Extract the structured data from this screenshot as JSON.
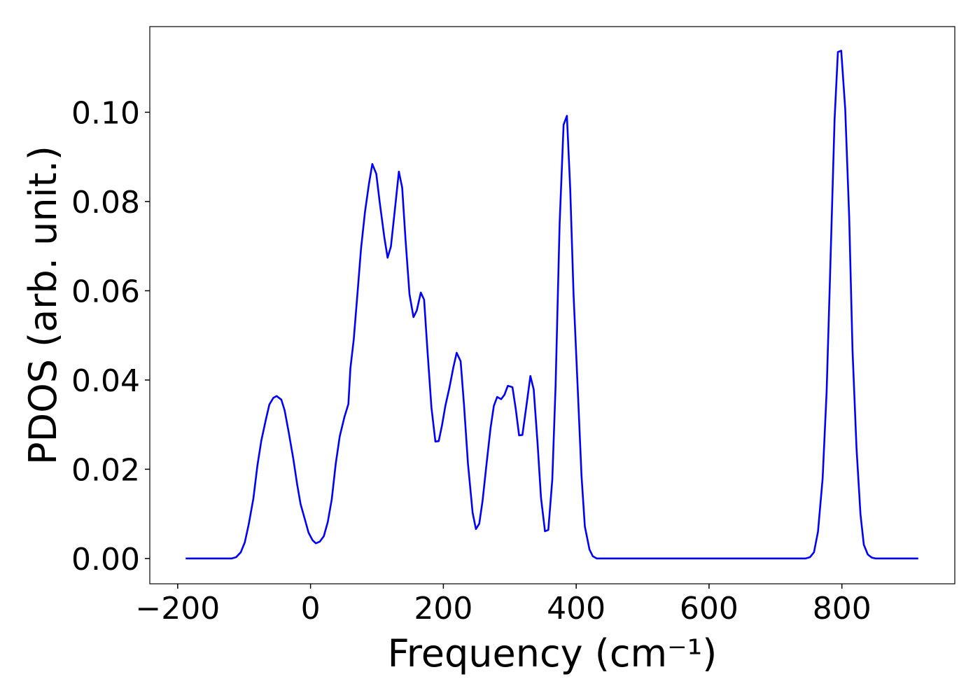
{
  "chart_data": {
    "type": "line",
    "xlabel": "Frequency (cm⁻¹)",
    "ylabel": "PDOS (arb. unit.)",
    "x": [
      -188,
      -119,
      -112,
      -105,
      -99,
      -93,
      -86,
      -80,
      -74,
      -67,
      -62,
      -56,
      -51,
      -44,
      -39,
      -33,
      -26,
      -20,
      -15,
      -8,
      -3,
      3,
      8,
      14,
      20,
      26,
      32,
      38,
      44,
      51,
      57,
      60,
      65,
      71,
      76,
      82,
      88,
      93,
      99,
      104,
      111,
      116,
      121,
      128,
      133,
      138,
      143,
      149,
      155,
      160,
      166,
      171,
      176,
      182,
      188,
      193,
      198,
      203,
      209,
      215,
      220,
      226,
      231,
      237,
      244,
      249,
      254,
      259,
      265,
      271,
      276,
      281,
      287,
      292,
      297,
      304,
      309,
      314,
      319,
      325,
      331,
      336,
      342,
      347,
      353,
      358,
      364,
      369,
      375,
      381,
      386,
      391,
      396,
      403,
      408,
      413,
      420,
      425,
      431,
      745,
      752,
      758,
      764,
      771,
      777,
      782,
      789,
      794,
      799,
      805,
      811,
      816,
      822,
      828,
      833,
      839,
      845,
      851,
      915
    ],
    "series": [
      {
        "color": "#0000ff",
        "values": [
          0,
          0,
          0.0003,
          0.0014,
          0.0036,
          0.0077,
          0.0135,
          0.0208,
          0.0265,
          0.0313,
          0.0345,
          0.036,
          0.0364,
          0.0356,
          0.0332,
          0.0284,
          0.0224,
          0.0165,
          0.0122,
          0.0085,
          0.0058,
          0.0041,
          0.0034,
          0.0038,
          0.005,
          0.0082,
          0.0133,
          0.0213,
          0.0274,
          0.0317,
          0.0346,
          0.0426,
          0.049,
          0.06,
          0.0694,
          0.0777,
          0.084,
          0.0884,
          0.0862,
          0.08,
          0.0721,
          0.0674,
          0.0699,
          0.0796,
          0.0867,
          0.0831,
          0.0715,
          0.0592,
          0.0541,
          0.0556,
          0.0596,
          0.058,
          0.0467,
          0.0339,
          0.0262,
          0.0263,
          0.0299,
          0.0342,
          0.0382,
          0.0428,
          0.0461,
          0.0442,
          0.0346,
          0.0213,
          0.0103,
          0.0066,
          0.0078,
          0.0129,
          0.0212,
          0.0292,
          0.0342,
          0.0362,
          0.0357,
          0.0367,
          0.0387,
          0.0384,
          0.0335,
          0.0276,
          0.0277,
          0.0342,
          0.0409,
          0.0379,
          0.0254,
          0.0136,
          0.0061,
          0.0064,
          0.0177,
          0.0389,
          0.0749,
          0.0972,
          0.0992,
          0.0828,
          0.0592,
          0.0357,
          0.0185,
          0.0072,
          0.002,
          0.0005,
          0,
          0,
          0.0003,
          0.0014,
          0.006,
          0.0179,
          0.0373,
          0.0624,
          0.0984,
          0.1135,
          0.1138,
          0.1008,
          0.0765,
          0.0467,
          0.0248,
          0.0099,
          0.0031,
          0.0009,
          0.0002,
          0,
          0
        ]
      }
    ],
    "xlim": [
      -242,
      970
    ],
    "ylim": [
      -0.00567,
      0.1192
    ],
    "xticks": [
      {
        "value": -200,
        "label": "−200"
      },
      0,
      200,
      400,
      600,
      800
    ],
    "yticks": [
      {
        "value": 0,
        "label": "0.00"
      },
      {
        "value": 0.02,
        "label": "0.02"
      },
      {
        "value": 0.04,
        "label": "0.04"
      },
      {
        "value": 0.06,
        "label": "0.06"
      },
      {
        "value": 0.08,
        "label": "0.08"
      },
      {
        "value": 0.1,
        "label": "0.10"
      }
    ]
  }
}
